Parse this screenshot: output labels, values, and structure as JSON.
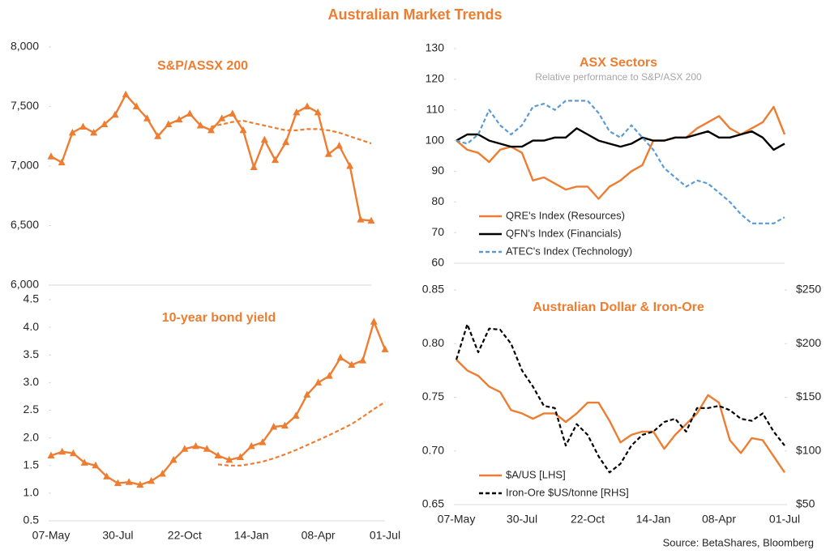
{
  "title": "Australian Market Trends",
  "source": "Source: BetaShares, Bloomberg",
  "chart_data": [
    {
      "type": "line",
      "title": "S&P/ASSX 200",
      "ylim": [
        6000,
        8000
      ],
      "yticks": [
        {
          "value": 6000,
          "label": "6,000"
        },
        {
          "value": 6500,
          "label": "6,500"
        },
        {
          "value": 7000,
          "label": "7,000"
        },
        {
          "value": 7500,
          "label": "7,500"
        },
        {
          "value": 8000,
          "label": "8,000"
        }
      ],
      "grid": false,
      "series": [
        {
          "color": "#ED7D31",
          "marker": "triangle",
          "values": [
            7080,
            7030,
            7280,
            7330,
            7280,
            7350,
            7430,
            7600,
            7500,
            7400,
            7250,
            7350,
            7390,
            7440,
            7340,
            7300,
            7400,
            7440,
            7300,
            6990,
            7220,
            7050,
            7200,
            7450,
            7500,
            7450,
            7100,
            7170,
            7000,
            6550,
            6540
          ]
        },
        {
          "color": "#ED7D31",
          "dash": true,
          "values": [
            null,
            null,
            null,
            null,
            null,
            null,
            null,
            null,
            null,
            null,
            null,
            null,
            null,
            null,
            null,
            7330,
            7350,
            7370,
            7380,
            7360,
            7340,
            7320,
            7300,
            7300,
            7310,
            7310,
            7300,
            7280,
            7250,
            7220,
            7190
          ]
        }
      ]
    },
    {
      "type": "line",
      "title": "10-year bond yield",
      "categories": [
        "07-May",
        null,
        null,
        null,
        null,
        null,
        "30-Jul",
        null,
        null,
        null,
        null,
        null,
        "22-Oct",
        null,
        null,
        null,
        null,
        null,
        "14-Jan",
        null,
        null,
        null,
        null,
        null,
        "08-Apr",
        null,
        null,
        null,
        null,
        null,
        "01-Jul"
      ],
      "ylim": [
        0.5,
        4.5
      ],
      "yticks": [
        0.5,
        {
          "value": 1,
          "label": "1.0"
        },
        1.5,
        {
          "value": 2,
          "label": "2.0"
        },
        2.5,
        {
          "value": 3,
          "label": "3.0"
        },
        3.5,
        {
          "value": 4,
          "label": "4.0"
        },
        4.5
      ],
      "grid": false,
      "series": [
        {
          "color": "#ED7D31",
          "marker": "triangle",
          "values": [
            1.68,
            1.75,
            1.72,
            1.55,
            1.5,
            1.3,
            1.18,
            1.2,
            1.15,
            1.22,
            1.35,
            1.6,
            1.8,
            1.85,
            1.8,
            1.68,
            1.6,
            1.65,
            1.85,
            1.92,
            2.2,
            2.22,
            2.4,
            2.78,
            3.0,
            3.12,
            3.45,
            3.32,
            3.4,
            4.1,
            3.6
          ]
        },
        {
          "color": "#ED7D31",
          "dash": true,
          "values": [
            null,
            null,
            null,
            null,
            null,
            null,
            null,
            null,
            null,
            null,
            null,
            null,
            null,
            null,
            null,
            1.52,
            1.5,
            1.5,
            1.53,
            1.57,
            1.63,
            1.7,
            1.78,
            1.87,
            1.96,
            2.05,
            2.15,
            2.25,
            2.38,
            2.52,
            2.65
          ]
        }
      ]
    },
    {
      "type": "line",
      "title": "ASX Sectors",
      "subtitle": "Relative performance to S&P/ASX 200",
      "ylim": [
        60,
        130
      ],
      "yticks": [
        60,
        70,
        80,
        90,
        100,
        110,
        120,
        130
      ],
      "grid": false,
      "legend": "lower left",
      "series": [
        {
          "name": "QRE's Index (Resources)",
          "color": "#ED7D31",
          "values": [
            100,
            97,
            96,
            93,
            97,
            98,
            96,
            87,
            88,
            86,
            84,
            85,
            85,
            81,
            85,
            87,
            90,
            92,
            100,
            100,
            101,
            101,
            104,
            106,
            108,
            104,
            102,
            104,
            106,
            111,
            102
          ]
        },
        {
          "name": "QFN's Index (Financials)",
          "color": "#000000",
          "values": [
            100,
            102,
            102,
            100,
            99,
            98,
            98,
            100,
            100,
            101,
            101,
            104,
            102,
            100,
            99,
            98,
            99,
            101,
            100,
            100,
            101,
            101,
            102,
            103,
            101,
            101,
            102,
            103,
            101,
            97,
            99
          ]
        },
        {
          "name": "ATEC's Index (Technology)",
          "color": "#5B9BD5",
          "dash": true,
          "values": [
            100,
            99,
            102,
            110,
            105,
            102,
            105,
            111,
            112,
            110,
            113,
            113,
            113,
            109,
            103,
            101,
            105,
            101,
            97,
            91,
            88,
            85,
            87,
            86,
            83,
            80,
            76,
            73,
            73,
            73,
            75
          ]
        }
      ]
    },
    {
      "type": "line",
      "title": "Australian Dollar & Iron-Ore",
      "categories": [
        "07-May",
        null,
        null,
        null,
        null,
        null,
        "30-Jul",
        null,
        null,
        null,
        null,
        null,
        "22-Oct",
        null,
        null,
        null,
        null,
        null,
        "14-Jan",
        null,
        null,
        null,
        null,
        null,
        "08-Apr",
        null,
        null,
        null,
        null,
        null,
        "01-Jul"
      ],
      "ylim": [
        0.65,
        0.85
      ],
      "yticks": [
        0.65,
        {
          "value": 0.7,
          "label": "0.70"
        },
        0.75,
        {
          "value": 0.8,
          "label": "0.80"
        },
        0.85
      ],
      "y2lim": [
        50,
        250
      ],
      "y2ticks": [
        {
          "value": 50,
          "label": "$50"
        },
        {
          "value": 100,
          "label": "$100"
        },
        {
          "value": 150,
          "label": "$150"
        },
        {
          "value": 200,
          "label": "$200"
        },
        {
          "value": 250,
          "label": "$250"
        }
      ],
      "grid": false,
      "legend": "lower left",
      "series": [
        {
          "name": "$A/US [LHS]",
          "color": "#ED7D31",
          "values": [
            0.785,
            0.775,
            0.77,
            0.76,
            0.755,
            0.738,
            0.735,
            0.73,
            0.735,
            0.735,
            0.727,
            0.735,
            0.745,
            0.745,
            0.728,
            0.708,
            0.715,
            0.718,
            0.718,
            0.702,
            0.715,
            0.725,
            0.735,
            0.752,
            0.745,
            0.71,
            0.698,
            0.712,
            0.71,
            0.695,
            0.68
          ]
        },
        {
          "name": "Iron-Ore $US/tonne [RHS]",
          "color": "#000000",
          "dash": true,
          "axis": "y2",
          "values": [
            185,
            218,
            192,
            214,
            213,
            200,
            175,
            160,
            142,
            140,
            105,
            125,
            115,
            95,
            80,
            88,
            105,
            115,
            118,
            127,
            130,
            118,
            140,
            140,
            142,
            138,
            130,
            128,
            135,
            118,
            105
          ]
        }
      ]
    }
  ]
}
